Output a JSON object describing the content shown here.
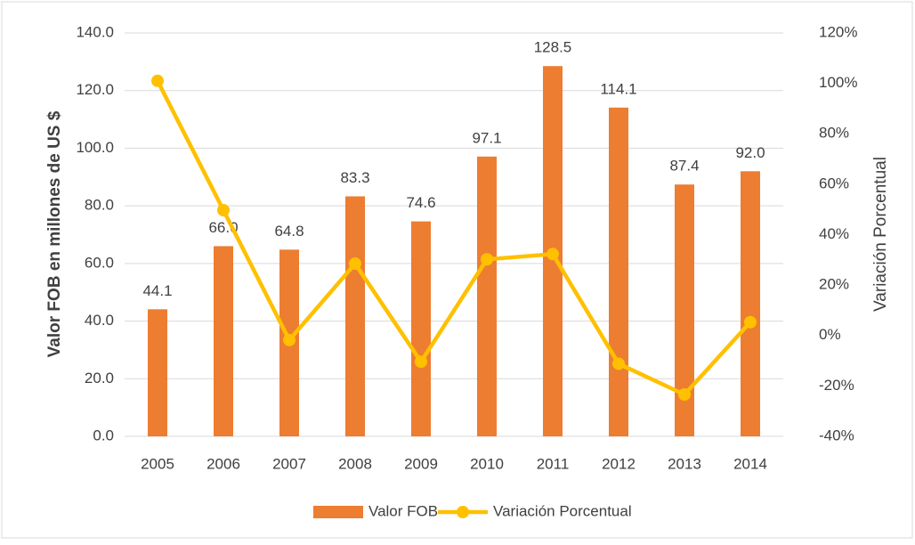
{
  "chart_data": {
    "type": "bar_line",
    "categories": [
      "2005",
      "2006",
      "2007",
      "2008",
      "2009",
      "2010",
      "2011",
      "2012",
      "2013",
      "2014"
    ],
    "series": [
      {
        "name": "Valor FOB",
        "type": "bar",
        "color": "#ed7d31",
        "values": [
          44.1,
          66.0,
          64.8,
          83.3,
          74.6,
          97.1,
          128.5,
          114.1,
          87.4,
          92.0
        ],
        "value_labels": [
          "44.1",
          "66.0",
          "64.8",
          "83.3",
          "74.6",
          "97.1",
          "128.5",
          "114.1",
          "87.4",
          "92.0"
        ]
      },
      {
        "name": "Variación Porcentual",
        "type": "line",
        "axis": "y2",
        "color": "#ffc000",
        "values": [
          101,
          49.7,
          -1.8,
          28.5,
          -10.4,
          30.2,
          32.3,
          -11.2,
          -23.4,
          5.3
        ]
      }
    ],
    "ylabel": "Valor FOB en millones de US $",
    "y2label": "Variación Porcentual",
    "ylim": [
      0,
      140
    ],
    "yticks": [
      {
        "value": 0,
        "label": "0.0"
      },
      {
        "value": 20,
        "label": "20.0"
      },
      {
        "value": 40,
        "label": "40.0"
      },
      {
        "value": 60,
        "label": "60.0"
      },
      {
        "value": 80,
        "label": "80.0"
      },
      {
        "value": 100,
        "label": "100.0"
      },
      {
        "value": 120,
        "label": "120.0"
      },
      {
        "value": 140,
        "label": "140.0"
      }
    ],
    "y2lim": [
      -40,
      120
    ],
    "y2ticks": [
      {
        "value": -40,
        "label": "-40%"
      },
      {
        "value": -20,
        "label": "-20%"
      },
      {
        "value": 0,
        "label": "0%"
      },
      {
        "value": 20,
        "label": "20%"
      },
      {
        "value": 40,
        "label": "40%"
      },
      {
        "value": 60,
        "label": "60%"
      },
      {
        "value": 80,
        "label": "80%"
      },
      {
        "value": 100,
        "label": "100%"
      },
      {
        "value": 120,
        "label": "120%"
      }
    ],
    "grid": true,
    "legend": "bottom"
  }
}
